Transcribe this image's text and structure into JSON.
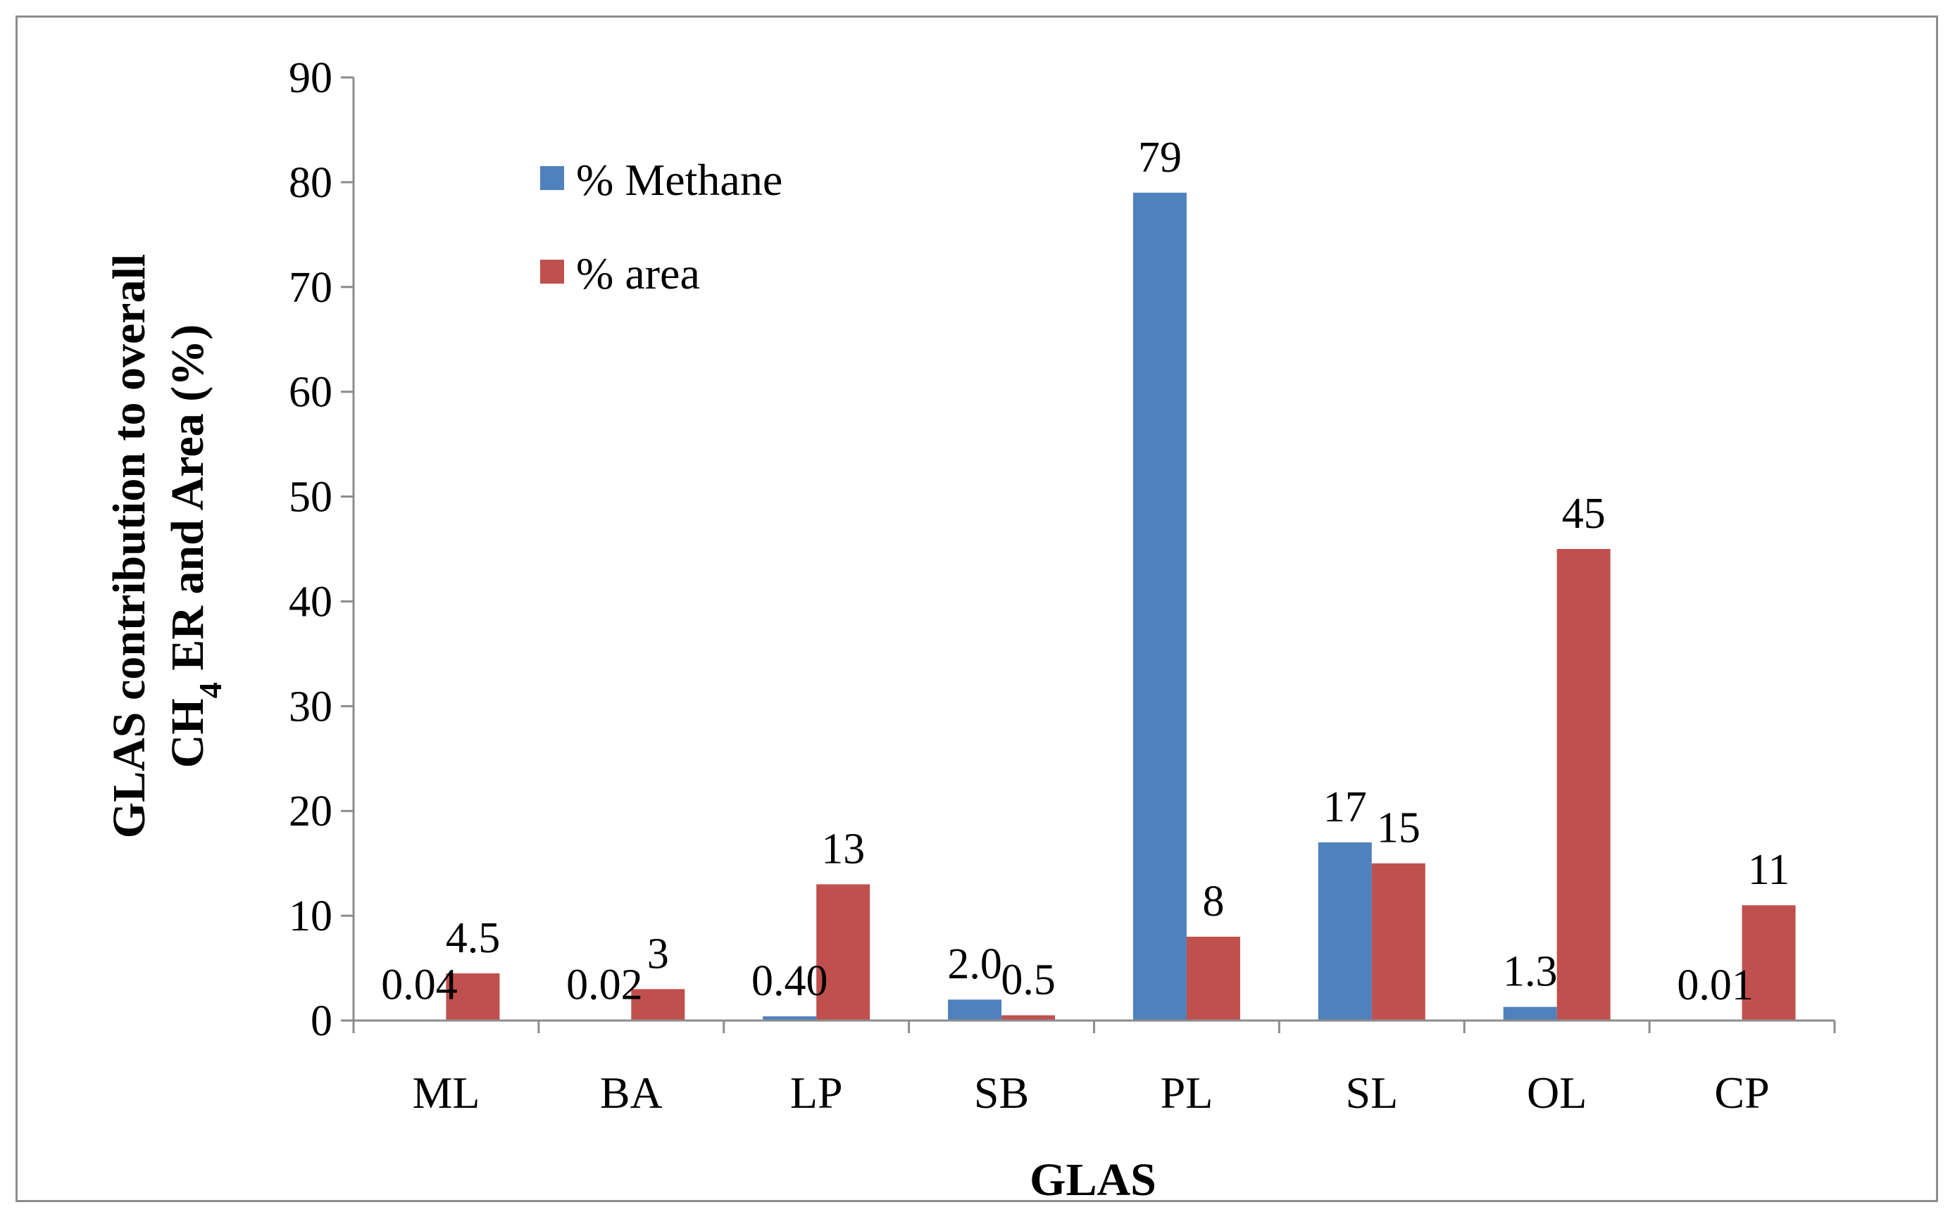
{
  "chart_data": {
    "type": "bar",
    "title": "",
    "xlabel": "GLAS",
    "ylabel_line1": "GLAS contribution to overall",
    "ylabel_line2_prefix": "CH",
    "ylabel_line2_sub": "4",
    "ylabel_line2_suffix": " ER and Area (%)",
    "categories": [
      "ML",
      "BA",
      "LP",
      "SB",
      "PL",
      "SL",
      "OL",
      "CP"
    ],
    "series": [
      {
        "name": "% Methane",
        "color": "#4f81bd",
        "values": [
          0.04,
          0.02,
          0.4,
          2.0,
          79,
          17,
          1.3,
          0.01
        ],
        "labels": [
          "0.04",
          "0.02",
          "0.40",
          "2.0",
          "79",
          "17",
          "1.3",
          "0.01"
        ]
      },
      {
        "name": "% area",
        "color": "#c0504d",
        "values": [
          4.5,
          3,
          13,
          0.5,
          8,
          15,
          45,
          11
        ],
        "labels": [
          "4.5",
          "3",
          "13",
          "0.5",
          "8",
          "15",
          "45",
          "11"
        ]
      }
    ],
    "ylim": [
      0,
      90
    ],
    "yticks": [
      0,
      10,
      20,
      30,
      40,
      50,
      60,
      70,
      80,
      90
    ],
    "grid": false,
    "legend_position": "top-left"
  }
}
